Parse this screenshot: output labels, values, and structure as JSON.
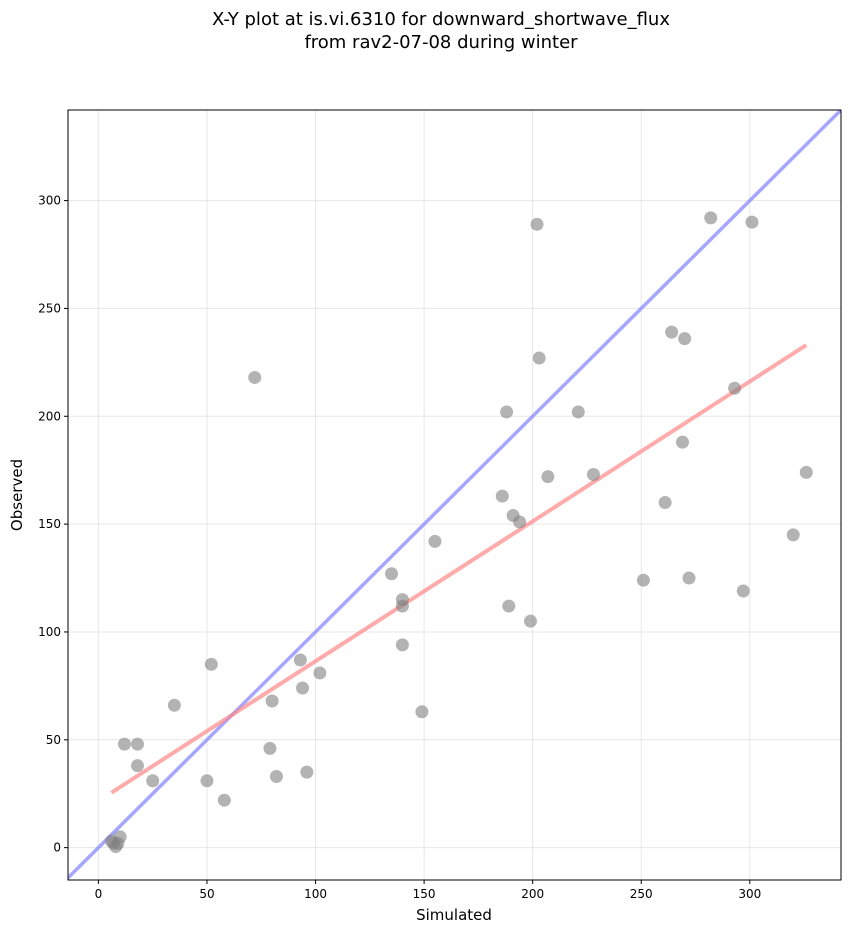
{
  "chart_data": {
    "type": "scatter",
    "title_line1": "X-Y plot at is.vi.6310 for downward_shortwave_flux",
    "title_line2": "from rav2-07-08 during winter",
    "xlabel": "Simulated",
    "ylabel": "Observed",
    "xlim": [
      -14,
      342
    ],
    "ylim": [
      -15,
      342
    ],
    "xticks": [
      0,
      50,
      100,
      150,
      200,
      250,
      300
    ],
    "yticks": [
      0,
      50,
      100,
      150,
      200,
      250,
      300
    ],
    "grid": true,
    "points_color": "#808080",
    "one_to_one_color": "#8888ff",
    "fit_color": "#ff8888",
    "fit_line": {
      "x": [
        6,
        326
      ],
      "y": [
        25.5,
        233
      ]
    },
    "points": [
      {
        "x": 6,
        "y": 3
      },
      {
        "x": 7,
        "y": 2
      },
      {
        "x": 8,
        "y": 0.5
      },
      {
        "x": 9,
        "y": 2
      },
      {
        "x": 10,
        "y": 5
      },
      {
        "x": 12,
        "y": 48
      },
      {
        "x": 18,
        "y": 48
      },
      {
        "x": 18,
        "y": 38
      },
      {
        "x": 25,
        "y": 31
      },
      {
        "x": 35,
        "y": 66
      },
      {
        "x": 50,
        "y": 31
      },
      {
        "x": 52,
        "y": 85
      },
      {
        "x": 58,
        "y": 22
      },
      {
        "x": 72,
        "y": 218
      },
      {
        "x": 79,
        "y": 46
      },
      {
        "x": 80,
        "y": 68
      },
      {
        "x": 82,
        "y": 33
      },
      {
        "x": 93,
        "y": 87
      },
      {
        "x": 94,
        "y": 74
      },
      {
        "x": 96,
        "y": 35
      },
      {
        "x": 102,
        "y": 81
      },
      {
        "x": 135,
        "y": 127
      },
      {
        "x": 140,
        "y": 115
      },
      {
        "x": 140,
        "y": 112
      },
      {
        "x": 140,
        "y": 94
      },
      {
        "x": 149,
        "y": 63
      },
      {
        "x": 155,
        "y": 142
      },
      {
        "x": 186,
        "y": 163
      },
      {
        "x": 188,
        "y": 202
      },
      {
        "x": 189,
        "y": 112
      },
      {
        "x": 191,
        "y": 154
      },
      {
        "x": 194,
        "y": 151
      },
      {
        "x": 199,
        "y": 105
      },
      {
        "x": 202,
        "y": 289
      },
      {
        "x": 203,
        "y": 227
      },
      {
        "x": 207,
        "y": 172
      },
      {
        "x": 221,
        "y": 202
      },
      {
        "x": 228,
        "y": 173
      },
      {
        "x": 251,
        "y": 124
      },
      {
        "x": 261,
        "y": 160
      },
      {
        "x": 264,
        "y": 239
      },
      {
        "x": 269,
        "y": 188
      },
      {
        "x": 270,
        "y": 236
      },
      {
        "x": 272,
        "y": 125
      },
      {
        "x": 282,
        "y": 292
      },
      {
        "x": 293,
        "y": 213
      },
      {
        "x": 297,
        "y": 119
      },
      {
        "x": 301,
        "y": 290
      },
      {
        "x": 320,
        "y": 145
      },
      {
        "x": 326,
        "y": 174
      }
    ]
  }
}
